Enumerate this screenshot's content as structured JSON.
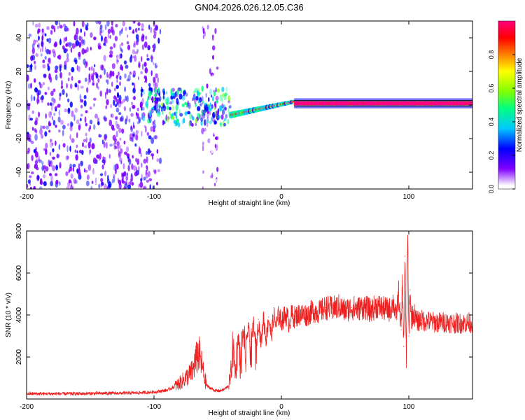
{
  "chart_data": [
    {
      "type": "heatmap",
      "title": "GN04.2026.026.12.05.C36",
      "xlabel": "Height of straight line (km)",
      "ylabel": "Frequency (Hz)",
      "xlim": [
        -200,
        150
      ],
      "ylim": [
        -50,
        50
      ],
      "xticks": [
        -200,
        -100,
        0,
        100
      ],
      "yticks": [
        -40,
        -20,
        0,
        20,
        40
      ],
      "colorbar": {
        "label": "Normalized spectral amplitude",
        "range": [
          0,
          1
        ],
        "ticks": [
          "0.0",
          "0.2",
          "0.4",
          "0.6",
          "0.8"
        ],
        "colors": [
          "#ffffff",
          "#8000ff",
          "#0000ff",
          "#00c8ff",
          "#00ff80",
          "#80ff00",
          "#ffff00",
          "#ff8000",
          "#ff0000",
          "#ff0080"
        ]
      },
      "regions": [
        {
          "name": "scattered noise",
          "x_range": [
            -200,
            -95
          ],
          "freq_range": [
            -50,
            50
          ],
          "amplitude": 0.12
        },
        {
          "name": "noise column",
          "x_range": [
            -62,
            -50
          ],
          "freq_range": [
            -50,
            50
          ],
          "amplitude": 0.06
        },
        {
          "name": "broadband onset",
          "x_range": [
            -110,
            -40
          ],
          "freq_range": [
            -12,
            10
          ],
          "amplitude": 0.3
        },
        {
          "name": "converging trace",
          "x_range": [
            -40,
            10
          ],
          "freq_range": [
            -6,
            2
          ],
          "amplitude": 0.7
        },
        {
          "name": "steady signal",
          "x_range": [
            10,
            150
          ],
          "freq_range": [
            0,
            2
          ],
          "amplitude": 0.95
        }
      ]
    },
    {
      "type": "line",
      "xlabel": "Height of straight line (km)",
      "ylabel": "SNR (10 * v/v)",
      "xlim": [
        -200,
        150
      ],
      "ylim": [
        0,
        8000
      ],
      "xticks": [
        -200,
        -100,
        0,
        100
      ],
      "yticks": [
        2000,
        4000,
        6000,
        8000
      ],
      "series": [
        {
          "name": "SNR",
          "color": "#ee2020",
          "x": [
            -200,
            -180,
            -160,
            -140,
            -120,
            -110,
            -100,
            -90,
            -85,
            -80,
            -75,
            -70,
            -68,
            -65,
            -62,
            -60,
            -58,
            -55,
            -52,
            -50,
            -48,
            -45,
            -42,
            -40,
            -38,
            -36,
            -34,
            -32,
            -30,
            -28,
            -26,
            -24,
            -22,
            -20,
            -18,
            -16,
            -14,
            -12,
            -10,
            -8,
            -6,
            -4,
            -2,
            0,
            2,
            4,
            6,
            8,
            10,
            15,
            20,
            25,
            30,
            35,
            40,
            45,
            50,
            55,
            60,
            65,
            70,
            75,
            80,
            85,
            88,
            90,
            92,
            94,
            95,
            96,
            97,
            98,
            99,
            100,
            101,
            102,
            104,
            106,
            110,
            115,
            120,
            130,
            140,
            150
          ],
          "y": [
            250,
            250,
            250,
            270,
            280,
            300,
            330,
            420,
            550,
            750,
            1000,
            1300,
            1700,
            2200,
            1500,
            900,
            600,
            500,
            400,
            380,
            400,
            450,
            600,
            1000,
            2500,
            1200,
            3000,
            1500,
            3300,
            1800,
            3600,
            2000,
            3700,
            2200,
            3800,
            2600,
            3900,
            2800,
            3900,
            3000,
            3950,
            3500,
            4000,
            3700,
            3900,
            4000,
            3600,
            4000,
            3900,
            4050,
            4000,
            4200,
            4150,
            4350,
            4300,
            4400,
            4200,
            4350,
            4300,
            4400,
            4200,
            4450,
            4300,
            4250,
            4600,
            3900,
            5000,
            3300,
            5600,
            2500,
            6800,
            1500,
            8000,
            3000,
            5200,
            3800,
            4100,
            3700,
            3750,
            3700,
            3650,
            3650,
            3600,
            3650
          ]
        }
      ]
    }
  ]
}
